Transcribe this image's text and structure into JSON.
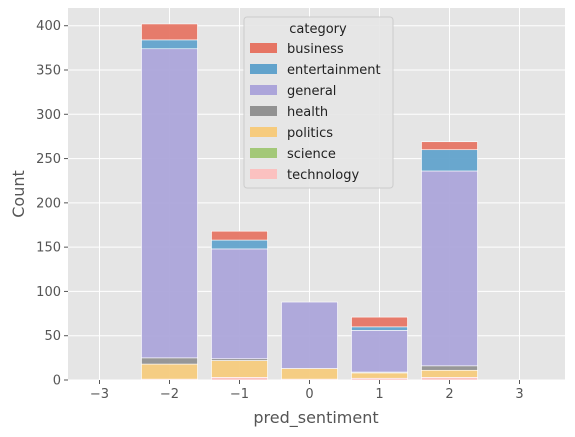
{
  "chart_data": {
    "type": "bar",
    "stacked": true,
    "xlabel": "pred_sentiment",
    "ylabel": "Count",
    "xlim": [
      -3.45,
      3.65
    ],
    "ylim": [
      0,
      420
    ],
    "xticks": [
      -3,
      -2,
      -1,
      0,
      1,
      2,
      3
    ],
    "xtick_labels": [
      "−3",
      "−2",
      "−1",
      "0",
      "1",
      "2",
      "3"
    ],
    "yticks": [
      0,
      50,
      100,
      150,
      200,
      250,
      300,
      350,
      400
    ],
    "ytick_labels": [
      "0",
      "50",
      "100",
      "150",
      "200",
      "250",
      "300",
      "350",
      "400"
    ],
    "grid": true,
    "bar_width": 0.8,
    "x": [
      -2,
      -1,
      0,
      1,
      2
    ],
    "series": [
      {
        "name": "technology",
        "color": "#fbc1c0",
        "values": [
          1,
          3,
          1,
          2,
          3
        ]
      },
      {
        "name": "science",
        "color": "#a3c878",
        "values": [
          0,
          0,
          0,
          0,
          0
        ]
      },
      {
        "name": "politics",
        "color": "#f6cb7d",
        "values": [
          17,
          19,
          12,
          6,
          8
        ]
      },
      {
        "name": "health",
        "color": "#929292",
        "values": [
          7,
          2,
          0,
          1,
          5
        ]
      },
      {
        "name": "general",
        "color": "#aca5da",
        "values": [
          349,
          124,
          75,
          47,
          220
        ]
      },
      {
        "name": "entertainment",
        "color": "#62a3cc",
        "values": [
          10,
          10,
          0,
          4,
          24
        ]
      },
      {
        "name": "business",
        "color": "#e67564",
        "values": [
          18,
          10,
          0,
          11,
          9
        ]
      }
    ],
    "legend": {
      "title": "category",
      "placement": "top-center",
      "entries": [
        "business",
        "entertainment",
        "general",
        "health",
        "politics",
        "science",
        "technology"
      ]
    }
  }
}
